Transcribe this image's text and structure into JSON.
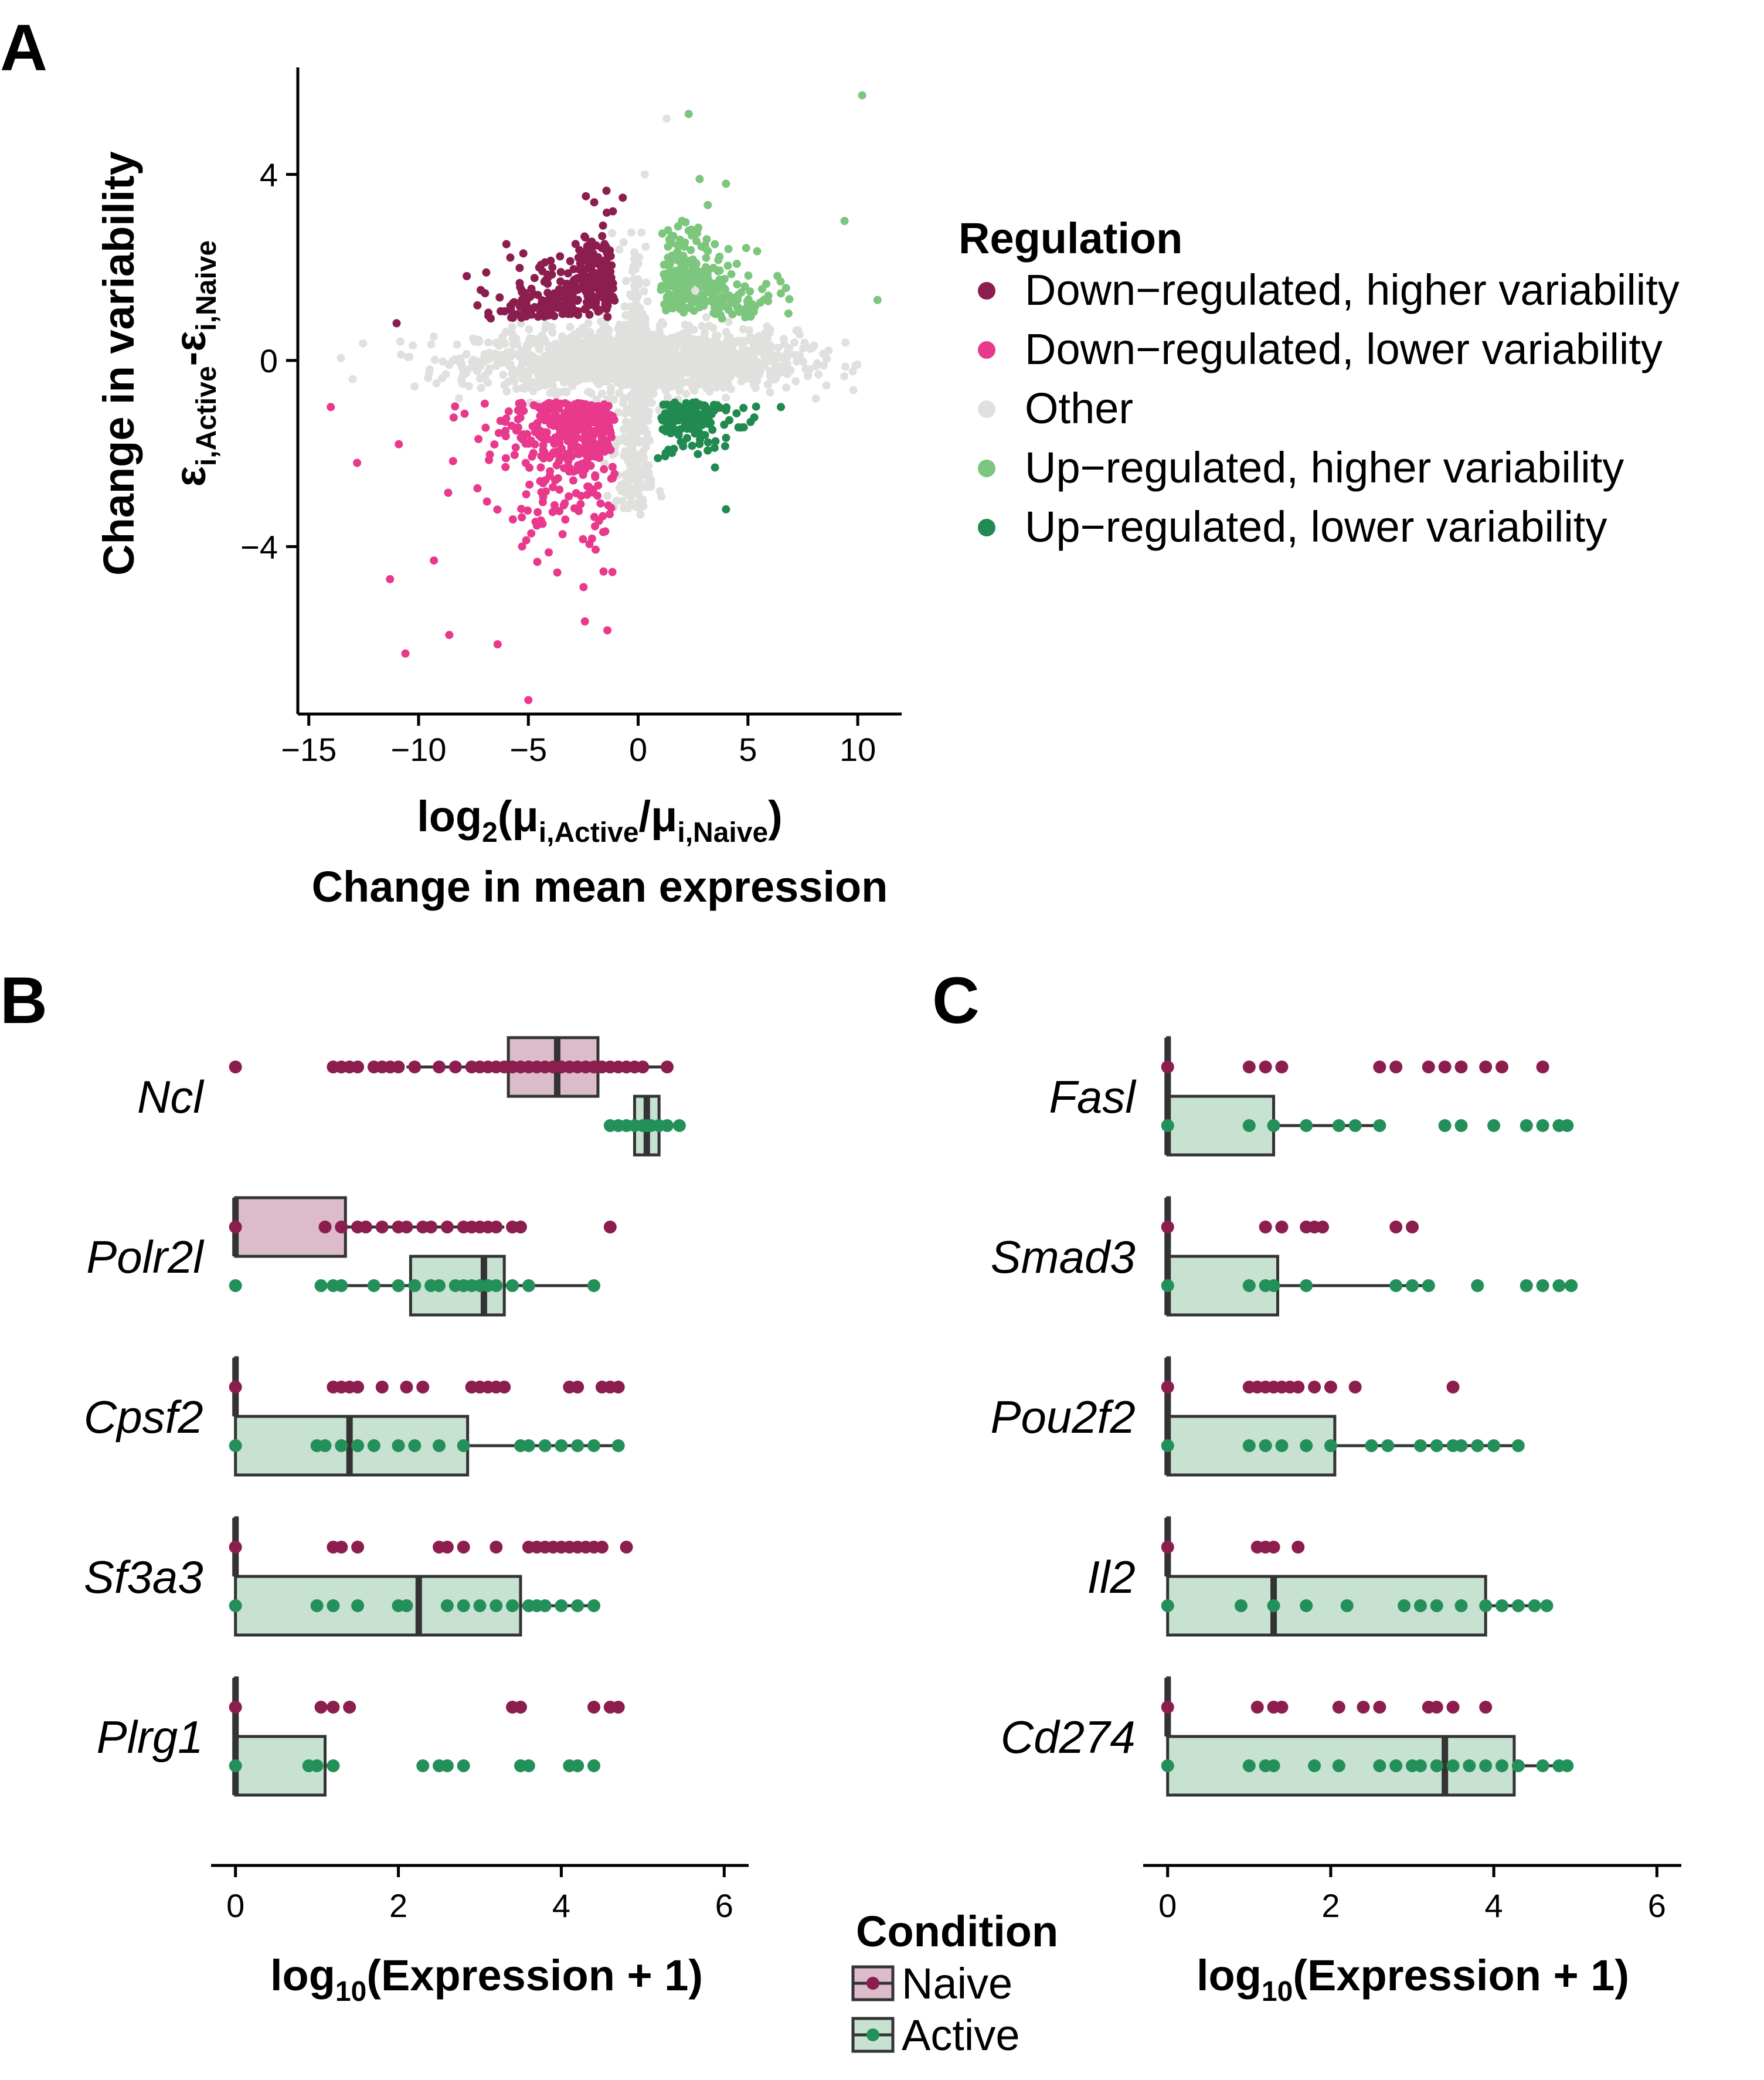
{
  "panels": {
    "a": "A",
    "b": "B",
    "c": "C"
  },
  "colors": {
    "down_higher": "#8c1d4f",
    "down_lower": "#e8398d",
    "other": "#e0e0de",
    "up_higher": "#7cc67e",
    "up_lower": "#208a50",
    "naive": "#8c1d4f",
    "active": "#23905a",
    "naive_box": "#dcbccb",
    "active_box": "#c7e2d1",
    "box_stroke": "#333333"
  },
  "chart_data": [
    {
      "id": "A",
      "type": "scatter",
      "title": "",
      "xlabel_main": "log",
      "xlabel_sub": "2",
      "xlabel_rest": "(μ",
      "xlabel_sub2": "i,Active",
      "xlabel_mid": "/μ",
      "xlabel_sub3": "i,Naive",
      "xlabel_end": ")",
      "xlabel2": "Change in mean expression",
      "ylabel_eps1": "ε",
      "ylabel_sub1": "i,Active",
      "ylabel_dash": "-ε",
      "ylabel_sub2": "i,Naive",
      "ylabel2": "Change in variability",
      "xlim": [
        -15.5,
        12
      ],
      "ylim": [
        -7.6,
        6.3
      ],
      "xticks": [
        {
          "v": -15,
          "label": "−15"
        },
        {
          "v": -10,
          "label": "−10"
        },
        {
          "v": -5,
          "label": "−5"
        },
        {
          "v": 0,
          "label": "0"
        },
        {
          "v": 5,
          "label": "5"
        },
        {
          "v": 10,
          "label": "10"
        }
      ],
      "yticks": [
        {
          "v": 4,
          "label": "4"
        },
        {
          "v": 0,
          "label": "0"
        },
        {
          "v": -4,
          "label": "−4"
        }
      ],
      "grid": false,
      "legend": {
        "title": "Regulation",
        "placement": "right",
        "entries": [
          {
            "key": "down_higher",
            "label": "Down−regulated, higher variability"
          },
          {
            "key": "down_lower",
            "label": "Down−regulated, lower variability"
          },
          {
            "key": "other",
            "label": "Other"
          },
          {
            "key": "up_higher",
            "label": "Up−regulated, higher variability"
          },
          {
            "key": "up_lower",
            "label": "Up−regulated, lower variability"
          }
        ]
      },
      "outliers": {
        "other": [
          [
            1.3,
            5.2
          ],
          [
            0.3,
            4.0
          ],
          [
            -13,
            -0.4
          ],
          [
            -8,
            -0.5
          ],
          [
            2.6,
            1.5
          ]
        ],
        "up_higher": [
          [
            10.2,
            5.7
          ],
          [
            2.3,
            5.3
          ],
          [
            9.4,
            3.0
          ],
          [
            10.9,
            1.3
          ],
          [
            2.8,
            3.9
          ],
          [
            4.0,
            3.8
          ]
        ],
        "down_higher": [
          [
            -11,
            0.8
          ],
          [
            -6.0,
            2.5
          ],
          [
            -2.0,
            3.4
          ],
          [
            -1.6,
            2.9
          ],
          [
            -0.7,
            3.5
          ]
        ],
        "down_lower": [
          [
            -14,
            -1.0
          ],
          [
            -12.8,
            -2.2
          ],
          [
            -11.3,
            -4.7
          ],
          [
            -10.6,
            -6.3
          ],
          [
            -9.3,
            -4.3
          ],
          [
            -8.6,
            -5.9
          ],
          [
            -5.0,
            -7.3
          ],
          [
            -1.4,
            -5.8
          ],
          [
            -6.4,
            -6.1
          ],
          [
            -10.9,
            -1.8
          ]
        ],
        "up_lower": [
          [
            4.0,
            -3.2
          ],
          [
            0.9,
            -2.1
          ],
          [
            6.5,
            -1.0
          ],
          [
            3.5,
            -2.3
          ]
        ]
      }
    },
    {
      "id": "B",
      "type": "box",
      "xlabel_pre": "log",
      "xlabel_sub": "10",
      "xlabel_post": "(Expression + 1)",
      "xlim": [
        -0.3,
        6.3
      ],
      "xticks": [
        0,
        2,
        4,
        6
      ],
      "genes": [
        {
          "name": "Ncl",
          "naive": {
            "q1": 3.35,
            "med": 3.95,
            "q3": 4.45,
            "wlo": 2.1,
            "whi": 5.3
          },
          "active": {
            "q1": 4.9,
            "med": 5.05,
            "q3": 5.2,
            "wlo": 4.6,
            "whi": 5.45
          },
          "naive_pts": [
            0,
            1.2,
            1.3,
            1.4,
            1.5,
            1.7,
            1.8,
            1.9,
            2.0,
            2.2,
            2.5,
            2.7,
            2.9,
            3.0,
            3.1,
            3.2,
            3.3,
            3.4,
            3.5,
            3.6,
            3.7,
            3.8,
            3.9,
            4.0,
            4.1,
            4.2,
            4.3,
            4.4,
            4.5,
            4.6,
            4.7,
            4.8,
            4.9,
            5.0,
            5.3
          ],
          "active_pts": [
            4.6,
            4.7,
            4.8,
            4.9,
            5.0,
            5.05,
            5.1,
            5.2,
            5.3,
            5.45
          ]
        },
        {
          "name": "Polr2l",
          "naive": {
            "q1": 0,
            "med": 0,
            "q3": 1.35,
            "wlo": 0,
            "whi": 3.3
          },
          "active": {
            "q1": 2.15,
            "med": 3.05,
            "q3": 3.3,
            "wlo": 1.05,
            "whi": 4.4
          },
          "naive_pts": [
            0,
            1.1,
            1.3,
            1.5,
            1.6,
            1.8,
            2.0,
            2.1,
            2.3,
            2.4,
            2.6,
            2.8,
            2.9,
            3.0,
            3.1,
            3.2,
            3.4,
            3.5,
            4.6
          ],
          "active_pts": [
            0,
            1.05,
            1.2,
            1.3,
            1.7,
            2.0,
            2.2,
            2.4,
            2.5,
            2.7,
            2.8,
            2.9,
            3.0,
            3.1,
            3.2,
            3.4,
            3.6,
            4.4
          ]
        },
        {
          "name": "Cpsf2",
          "naive": {
            "q1": 0,
            "med": 0,
            "q3": 0,
            "wlo": 0,
            "whi": 0
          },
          "active": {
            "q1": 0,
            "med": 1.4,
            "q3": 2.85,
            "wlo": 0,
            "whi": 4.7
          },
          "naive_pts": [
            0,
            1.2,
            1.3,
            1.4,
            1.5,
            1.8,
            2.1,
            2.3,
            2.9,
            3.0,
            3.1,
            3.2,
            3.3,
            4.1,
            4.2,
            4.5,
            4.6,
            4.7
          ],
          "active_pts": [
            0,
            1.0,
            1.1,
            1.3,
            1.5,
            1.7,
            2.0,
            2.2,
            2.5,
            2.8,
            3.5,
            3.6,
            3.8,
            4.0,
            4.2,
            4.4,
            4.7
          ]
        },
        {
          "name": "Sf3a3",
          "naive": {
            "q1": 0,
            "med": 0,
            "q3": 0,
            "wlo": 0,
            "whi": 0
          },
          "active": {
            "q1": 0,
            "med": 2.25,
            "q3": 3.5,
            "wlo": 0,
            "whi": 4.4
          },
          "naive_pts": [
            0,
            1.2,
            1.3,
            1.5,
            2.5,
            2.6,
            2.8,
            3.2,
            3.6,
            3.7,
            3.8,
            3.9,
            4.0,
            4.1,
            4.2,
            4.3,
            4.4,
            4.5,
            4.8
          ],
          "active_pts": [
            0,
            1.0,
            1.2,
            1.5,
            2.0,
            2.1,
            2.6,
            2.8,
            3.0,
            3.2,
            3.4,
            3.6,
            3.7,
            3.8,
            4.0,
            4.2,
            4.4
          ]
        },
        {
          "name": "Plrg1",
          "naive": {
            "q1": 0,
            "med": 0,
            "q3": 0,
            "wlo": 0,
            "whi": 0
          },
          "active": {
            "q1": 0,
            "med": 0,
            "q3": 1.1,
            "wlo": 0,
            "whi": 1.25
          },
          "naive_pts": [
            0,
            1.05,
            1.2,
            1.4,
            3.4,
            3.5,
            4.4,
            4.6,
            4.7
          ],
          "active_pts": [
            0,
            0.9,
            1.0,
            1.2,
            2.3,
            2.5,
            2.6,
            2.8,
            3.5,
            3.6,
            4.1,
            4.2,
            4.4
          ]
        }
      ]
    },
    {
      "id": "C",
      "type": "box",
      "xlabel_pre": "log",
      "xlabel_sub": "10",
      "xlabel_post": "(Expression + 1)",
      "xlim": [
        -0.3,
        6.3
      ],
      "xticks": [
        0,
        2,
        4,
        6
      ],
      "genes": [
        {
          "name": "Fasl",
          "naive": {
            "q1": 0,
            "med": 0,
            "q3": 0,
            "wlo": 0,
            "whi": 0
          },
          "active": {
            "q1": 0,
            "med": 0,
            "q3": 1.3,
            "wlo": 0,
            "whi": 2.6
          },
          "naive_pts": [
            0,
            1.0,
            1.2,
            1.4,
            2.6,
            2.8,
            3.2,
            3.4,
            3.6,
            3.9,
            4.1,
            4.6
          ],
          "active_pts": [
            0,
            1.0,
            1.3,
            1.7,
            2.1,
            2.3,
            2.6,
            3.4,
            3.6,
            4.0,
            4.4,
            4.6,
            4.8,
            4.9
          ]
        },
        {
          "name": "Smad3",
          "naive": {
            "q1": 0,
            "med": 0,
            "q3": 0,
            "wlo": 0,
            "whi": 0
          },
          "active": {
            "q1": 0,
            "med": 0,
            "q3": 1.35,
            "wlo": 0,
            "whi": 3.2
          },
          "naive_pts": [
            0,
            1.2,
            1.4,
            1.7,
            1.8,
            1.9,
            2.8,
            3.0
          ],
          "active_pts": [
            0,
            1.0,
            1.2,
            1.3,
            1.7,
            2.8,
            3.0,
            3.2,
            3.8,
            4.4,
            4.6,
            4.8,
            4.95
          ]
        },
        {
          "name": "Pou2f2",
          "naive": {
            "q1": 0,
            "med": 0,
            "q3": 0,
            "wlo": 0,
            "whi": 0
          },
          "active": {
            "q1": 0,
            "med": 0,
            "q3": 2.05,
            "wlo": 0,
            "whi": 4.3
          },
          "naive_pts": [
            0,
            1.0,
            1.1,
            1.2,
            1.3,
            1.4,
            1.5,
            1.6,
            1.8,
            2.0,
            2.3,
            3.5
          ],
          "active_pts": [
            0,
            1.0,
            1.2,
            1.4,
            1.7,
            2.0,
            2.5,
            2.7,
            3.1,
            3.3,
            3.5,
            3.6,
            3.8,
            4.0,
            4.3
          ]
        },
        {
          "name": "Il2",
          "naive": {
            "q1": 0,
            "med": 0,
            "q3": 0,
            "wlo": 0,
            "whi": 0
          },
          "active": {
            "q1": 0,
            "med": 1.3,
            "q3": 3.9,
            "wlo": 0,
            "whi": 4.65
          },
          "naive_pts": [
            0,
            1.1,
            1.2,
            1.3,
            1.6
          ],
          "active_pts": [
            0,
            0.9,
            1.3,
            1.7,
            2.2,
            2.9,
            3.1,
            3.3,
            3.6,
            3.9,
            4.1,
            4.3,
            4.5,
            4.65
          ]
        },
        {
          "name": "Cd274",
          "naive": {
            "q1": 0,
            "med": 0,
            "q3": 0,
            "wlo": 0,
            "whi": 0
          },
          "active": {
            "q1": 0,
            "med": 3.4,
            "q3": 4.25,
            "wlo": 0,
            "whi": 4.9
          },
          "naive_pts": [
            0,
            1.1,
            1.3,
            1.4,
            2.1,
            2.4,
            2.6,
            3.2,
            3.3,
            3.5,
            3.9
          ],
          "active_pts": [
            0,
            1.0,
            1.2,
            1.3,
            1.8,
            2.1,
            2.6,
            2.8,
            3.0,
            3.1,
            3.3,
            3.5,
            3.7,
            3.9,
            4.1,
            4.3,
            4.6,
            4.8,
            4.9
          ]
        }
      ]
    }
  ],
  "condition_legend": {
    "title": "Condition",
    "items": [
      {
        "key": "naive",
        "label": "Naive"
      },
      {
        "key": "active",
        "label": "Active"
      }
    ]
  }
}
